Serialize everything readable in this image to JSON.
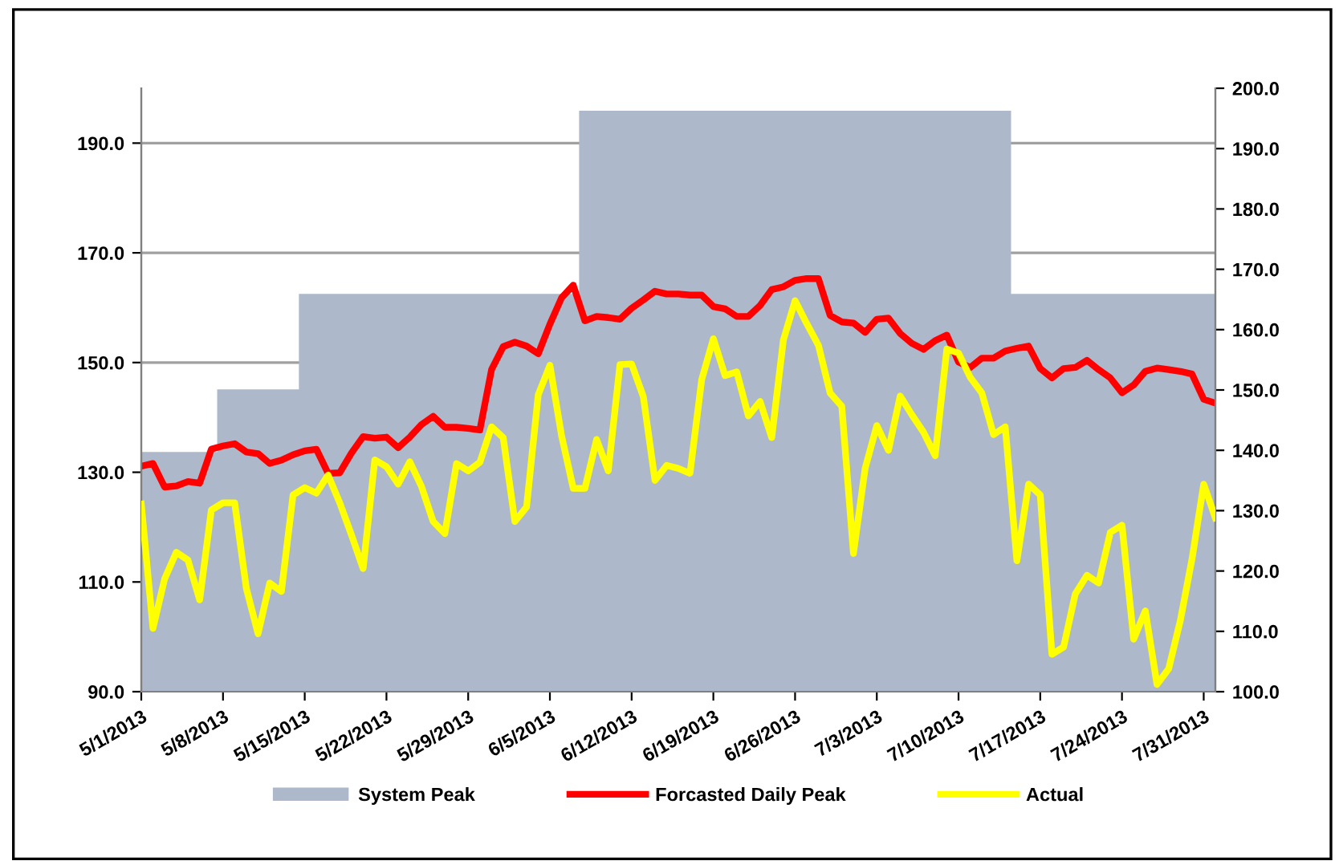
{
  "chart_data": {
    "type": "line",
    "x": [
      "2013-05-01",
      "2013-05-02",
      "2013-05-03",
      "2013-05-04",
      "2013-05-05",
      "2013-05-06",
      "2013-05-07",
      "2013-05-08",
      "2013-05-09",
      "2013-05-10",
      "2013-05-11",
      "2013-05-12",
      "2013-05-13",
      "2013-05-14",
      "2013-05-15",
      "2013-05-16",
      "2013-05-17",
      "2013-05-18",
      "2013-05-19",
      "2013-05-20",
      "2013-05-21",
      "2013-05-22",
      "2013-05-23",
      "2013-05-24",
      "2013-05-25",
      "2013-05-26",
      "2013-05-27",
      "2013-05-28",
      "2013-05-29",
      "2013-05-30",
      "2013-05-31",
      "2013-06-01",
      "2013-06-02",
      "2013-06-03",
      "2013-06-04",
      "2013-06-05",
      "2013-06-06",
      "2013-06-07",
      "2013-06-08",
      "2013-06-09",
      "2013-06-10",
      "2013-06-11",
      "2013-06-12",
      "2013-06-13",
      "2013-06-14",
      "2013-06-15",
      "2013-06-16",
      "2013-06-17",
      "2013-06-18",
      "2013-06-19",
      "2013-06-20",
      "2013-06-21",
      "2013-06-22",
      "2013-06-23",
      "2013-06-24",
      "2013-06-25",
      "2013-06-26",
      "2013-06-27",
      "2013-06-28",
      "2013-06-29",
      "2013-06-30",
      "2013-07-01",
      "2013-07-02",
      "2013-07-03",
      "2013-07-04",
      "2013-07-05",
      "2013-07-06",
      "2013-07-07",
      "2013-07-08",
      "2013-07-09",
      "2013-07-10",
      "2013-07-11",
      "2013-07-12",
      "2013-07-13",
      "2013-07-14",
      "2013-07-15",
      "2013-07-16",
      "2013-07-17",
      "2013-07-18",
      "2013-07-19",
      "2013-07-20",
      "2013-07-21",
      "2013-07-22",
      "2013-07-23",
      "2013-07-24",
      "2013-07-25",
      "2013-07-26",
      "2013-07-27",
      "2013-07-28",
      "2013-07-29",
      "2013-07-30",
      "2013-07-31",
      "2013-08-01"
    ],
    "series": [
      {
        "name": "System Peak",
        "type": "area",
        "color": "#adb9ca",
        "values": [
          133.7,
          133.7,
          133.7,
          133.7,
          133.7,
          133.7,
          133.7,
          145.1,
          145.1,
          145.1,
          145.1,
          145.1,
          145.1,
          145.1,
          162.5,
          162.5,
          162.5,
          162.5,
          162.5,
          162.5,
          162.5,
          162.5,
          162.5,
          162.5,
          162.5,
          162.5,
          162.5,
          162.5,
          162.5,
          162.5,
          162.5,
          162.5,
          162.5,
          162.5,
          162.5,
          162.5,
          162.5,
          162.5,
          195.9,
          195.9,
          195.9,
          195.9,
          195.9,
          195.9,
          195.9,
          195.9,
          195.9,
          195.9,
          195.9,
          195.9,
          195.9,
          195.9,
          195.9,
          195.9,
          195.9,
          195.9,
          195.9,
          195.9,
          195.9,
          195.9,
          195.9,
          195.9,
          195.9,
          195.9,
          195.9,
          195.9,
          195.9,
          195.9,
          195.9,
          195.9,
          195.9,
          195.9,
          195.9,
          195.9,
          195.9,
          162.5,
          162.5,
          162.5,
          162.5,
          162.5,
          162.5,
          162.5,
          162.5,
          162.5,
          162.5,
          162.5,
          162.5,
          162.5,
          162.5,
          162.5,
          162.5,
          162.5,
          162.5
        ]
      },
      {
        "name": "Forcasted Daily Peak",
        "color": "#ff0000",
        "values": [
          131.1,
          131.6,
          127.3,
          127.5,
          128.3,
          128.0,
          134.2,
          134.8,
          135.2,
          133.7,
          133.4,
          131.6,
          132.2,
          133.2,
          133.9,
          134.2,
          129.8,
          129.9,
          133.5,
          136.5,
          136.2,
          136.4,
          134.5,
          136.4,
          138.7,
          140.2,
          138.2,
          138.2,
          138.0,
          137.7,
          148.7,
          152.9,
          153.7,
          153.0,
          151.6,
          157.0,
          161.8,
          164.1,
          157.6,
          158.4,
          158.2,
          157.9,
          159.9,
          161.4,
          163.0,
          162.5,
          162.5,
          162.3,
          162.3,
          160.2,
          159.8,
          158.4,
          158.4,
          160.4,
          163.3,
          163.8,
          165.0,
          165.3,
          165.3,
          158.6,
          157.4,
          157.2,
          155.5,
          157.9,
          158.1,
          155.3,
          153.5,
          152.4,
          154.0,
          155.0,
          150.1,
          149.1,
          150.8,
          150.8,
          152.1,
          152.6,
          153.0,
          148.9,
          147.2,
          148.9,
          149.1,
          150.4,
          148.7,
          147.2,
          144.5,
          145.9,
          148.4,
          149.0,
          148.7,
          148.4,
          147.9,
          143.3,
          142.6
        ]
      },
      {
        "name": "Actual",
        "axis": "y2",
        "color": "#ffff00",
        "values": [
          131.1,
          110.5,
          118.7,
          123.1,
          121.8,
          115.2,
          130.1,
          131.3,
          131.3,
          117.1,
          109.6,
          118.0,
          116.6,
          132.6,
          133.8,
          132.9,
          135.9,
          131.3,
          126.0,
          120.4,
          138.4,
          137.3,
          134.4,
          138.1,
          134.0,
          128.2,
          126.2,
          137.8,
          136.6,
          138.0,
          143.9,
          142.1,
          128.2,
          130.6,
          149.2,
          154.1,
          142.4,
          133.7,
          133.7,
          141.8,
          136.6,
          154.2,
          154.3,
          148.9,
          135.0,
          137.5,
          137.0,
          136.2,
          151.7,
          158.5,
          152.4,
          153.0,
          145.7,
          148.1,
          142.1,
          158.3,
          164.8,
          161.0,
          157.4,
          149.5,
          147.3,
          122.9,
          137.0,
          144.1,
          140.0,
          149.0,
          145.9,
          143.0,
          139.1,
          156.8,
          156.1,
          152.1,
          149.5,
          142.6,
          143.9,
          121.7,
          134.4,
          132.6,
          106.2,
          107.4,
          116.2,
          119.3,
          118.0,
          126.4,
          127.6,
          108.7,
          113.4,
          101.2,
          103.8,
          111.8,
          122.0,
          134.4,
          128.8
        ]
      }
    ],
    "xlim": [
      "2013-05-01",
      "2013-08-01"
    ],
    "xticks": [
      {
        "value": "2013-05-01",
        "label": "5/1/2013"
      },
      {
        "value": "2013-05-08",
        "label": "5/8/2013"
      },
      {
        "value": "2013-05-15",
        "label": "5/15/2013"
      },
      {
        "value": "2013-05-22",
        "label": "5/22/2013"
      },
      {
        "value": "2013-05-29",
        "label": "5/29/2013"
      },
      {
        "value": "2013-06-05",
        "label": "6/5/2013"
      },
      {
        "value": "2013-06-12",
        "label": "6/12/2013"
      },
      {
        "value": "2013-06-19",
        "label": "6/19/2013"
      },
      {
        "value": "2013-06-26",
        "label": "6/26/2013"
      },
      {
        "value": "2013-07-03",
        "label": "7/3/2013"
      },
      {
        "value": "2013-07-10",
        "label": "7/10/2013"
      },
      {
        "value": "2013-07-17",
        "label": "7/17/2013"
      },
      {
        "value": "2013-07-24",
        "label": "7/24/2013"
      },
      {
        "value": "2013-07-31",
        "label": "7/31/2013"
      }
    ],
    "ylim": [
      90,
      200
    ],
    "yticks": [
      {
        "value": 90,
        "label": "90.0"
      },
      {
        "value": 110,
        "label": "110.0"
      },
      {
        "value": 130,
        "label": "130.0"
      },
      {
        "value": 150,
        "label": "150.0"
      },
      {
        "value": 170,
        "label": "170.0"
      },
      {
        "value": 190,
        "label": "190.0"
      }
    ],
    "y2lim": [
      100,
      200
    ],
    "y2ticks": [
      {
        "value": 100,
        "label": "100.0"
      },
      {
        "value": 110,
        "label": "110.0"
      },
      {
        "value": 120,
        "label": "120.0"
      },
      {
        "value": 130,
        "label": "130.0"
      },
      {
        "value": 140,
        "label": "140.0"
      },
      {
        "value": 150,
        "label": "150.0"
      },
      {
        "value": 160,
        "label": "160.0"
      },
      {
        "value": 170,
        "label": "170.0"
      },
      {
        "value": 180,
        "label": "180.0"
      },
      {
        "value": 190,
        "label": "190.0"
      },
      {
        "value": 200,
        "label": "200.0"
      }
    ],
    "grid": "y",
    "legend": "bottom",
    "marker": "none",
    "line_style": "solid"
  }
}
